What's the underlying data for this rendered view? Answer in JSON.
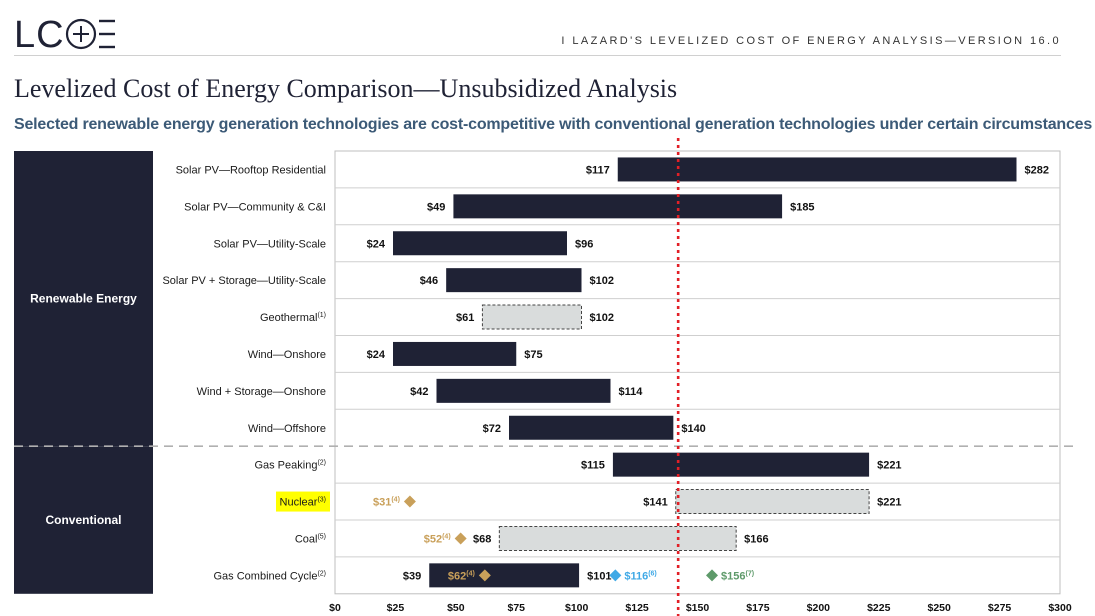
{
  "header": {
    "logo_text": "LC+E",
    "right_text": "I   LAZARD'S LEVELIZED COST OF ENERGY ANALYSIS—VERSION 16.0",
    "title": "Levelized Cost of Energy Comparison—Unsubsidized Analysis",
    "subtitle": "Selected renewable energy generation technologies are cost-competitive with conventional generation technologies under certain circumstances"
  },
  "colors": {
    "bar_dark": "#1f2235",
    "bar_light": "#d9dcdc",
    "marker_gold": "#c9a05a",
    "marker_blue": "#3fa9e6",
    "marker_green": "#5e9a6a",
    "highlight_yellow": "#ffff00",
    "reference_line": "#e21f26"
  },
  "chart_data": {
    "type": "bar",
    "orientation": "horizontal-range",
    "xlim": [
      0,
      300
    ],
    "x_ticks": [
      "$0",
      "$25",
      "$50",
      "$75",
      "$100",
      "$125",
      "$150",
      "$175",
      "$200",
      "$225",
      "$250",
      "$275",
      "$300"
    ],
    "reference_line_x": 142,
    "groups": [
      {
        "label": "Renewable Energy",
        "rows": [
          0,
          7
        ]
      },
      {
        "label": "Conventional",
        "rows": [
          8,
          11
        ]
      }
    ],
    "rows": [
      {
        "label": "Solar PV—Rooftop Residential",
        "sup": "",
        "low": 117,
        "high": 282,
        "low_label": "$117",
        "high_label": "$282",
        "style": "dark"
      },
      {
        "label": "Solar PV—Community & C&I",
        "sup": "",
        "low": 49,
        "high": 185,
        "low_label": "$49",
        "high_label": "$185",
        "style": "dark"
      },
      {
        "label": "Solar PV—Utility-Scale",
        "sup": "",
        "low": 24,
        "high": 96,
        "low_label": "$24",
        "high_label": "$96",
        "style": "dark"
      },
      {
        "label": "Solar PV + Storage—Utility-Scale",
        "sup": "",
        "low": 46,
        "high": 102,
        "low_label": "$46",
        "high_label": "$102",
        "style": "dark"
      },
      {
        "label": "Geothermal",
        "sup": "(1)",
        "low": 61,
        "high": 102,
        "low_label": "$61",
        "high_label": "$102",
        "style": "light"
      },
      {
        "label": "Wind—Onshore",
        "sup": "",
        "low": 24,
        "high": 75,
        "low_label": "$24",
        "high_label": "$75",
        "style": "dark"
      },
      {
        "label": "Wind + Storage—Onshore",
        "sup": "",
        "low": 42,
        "high": 114,
        "low_label": "$42",
        "high_label": "$114",
        "style": "dark"
      },
      {
        "label": "Wind—Offshore",
        "sup": "",
        "low": 72,
        "high": 140,
        "low_label": "$72",
        "high_label": "$140",
        "style": "dark"
      },
      {
        "label": "Gas Peaking",
        "sup": "(2)",
        "low": 115,
        "high": 221,
        "low_label": "$115",
        "high_label": "$221",
        "style": "dark"
      },
      {
        "label": "Nuclear",
        "sup": "(3)",
        "low": 141,
        "high": 221,
        "low_label": "$141",
        "high_label": "$221",
        "style": "light",
        "highlight": true
      },
      {
        "label": "Coal",
        "sup": "(5)",
        "low": 68,
        "high": 166,
        "low_label": "$68",
        "high_label": "$166",
        "style": "light"
      },
      {
        "label": "Gas Combined Cycle",
        "sup": "(2)",
        "low": 39,
        "high": 101,
        "low_label": "$39",
        "high_label": "$101",
        "style": "dark"
      }
    ],
    "markers": [
      {
        "row": 9,
        "value": 31,
        "label": "$31",
        "sup": "(4)",
        "color": "gold",
        "label_side": "left"
      },
      {
        "row": 10,
        "value": 52,
        "label": "$52",
        "sup": "(4)",
        "color": "gold",
        "label_side": "left"
      },
      {
        "row": 11,
        "value": 62,
        "label": "$62",
        "sup": "(4)",
        "color": "gold",
        "label_side": "left"
      },
      {
        "row": 11,
        "value": 116,
        "label": "$116",
        "sup": "(6)",
        "color": "blue",
        "label_side": "right"
      },
      {
        "row": 11,
        "value": 156,
        "label": "$156",
        "sup": "(7)",
        "color": "green",
        "label_side": "right"
      }
    ]
  }
}
